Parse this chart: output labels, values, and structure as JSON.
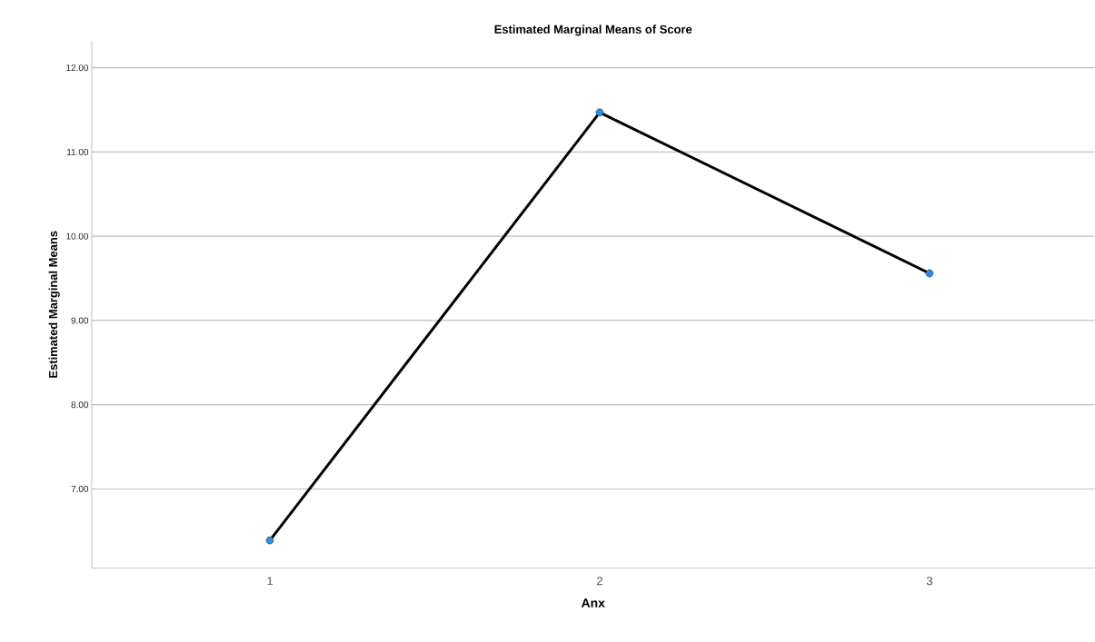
{
  "chart_data": {
    "type": "line",
    "title": "Estimated Marginal Means of Score",
    "xlabel": "Anx",
    "ylabel": "Estimated Marginal Means",
    "categories": [
      "1",
      "2",
      "3"
    ],
    "series": [
      {
        "color": "#000000",
        "values": [
          6.39,
          11.47,
          9.56
        ]
      }
    ],
    "marker": "circle",
    "line_style": "solid",
    "ylim": [
      6.06,
      12.32
    ],
    "yticks": [
      {
        "value": 7,
        "label": "7.00"
      },
      {
        "value": 8,
        "label": "8.00"
      },
      {
        "value": 9,
        "label": "9.00"
      },
      {
        "value": 10,
        "label": "10.00"
      },
      {
        "value": 11,
        "label": "11.00"
      },
      {
        "value": 12,
        "label": "12.00"
      }
    ],
    "grid": "y"
  }
}
